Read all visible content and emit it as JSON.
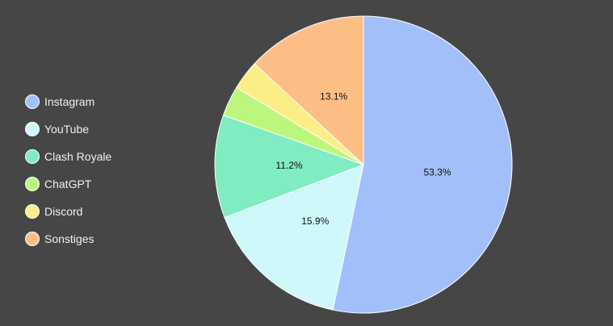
{
  "chart_data": {
    "type": "pie",
    "categories": [
      "Instagram",
      "YouTube",
      "Clash Royale",
      "ChatGPT",
      "Discord",
      "Sonstiges"
    ],
    "values": [
      53.3,
      15.9,
      11.2,
      3.3,
      3.2,
      13.1
    ],
    "labels": [
      "53.3%",
      "15.9%",
      "11.2%",
      "",
      "",
      "13.1%"
    ],
    "colors": [
      "#a3bffa",
      "#cff8fa",
      "#7fecc1",
      "#bcf67c",
      "#fbee87",
      "#fdbe86"
    ],
    "legend_position": "left",
    "start_angle": "top, clockwise"
  }
}
